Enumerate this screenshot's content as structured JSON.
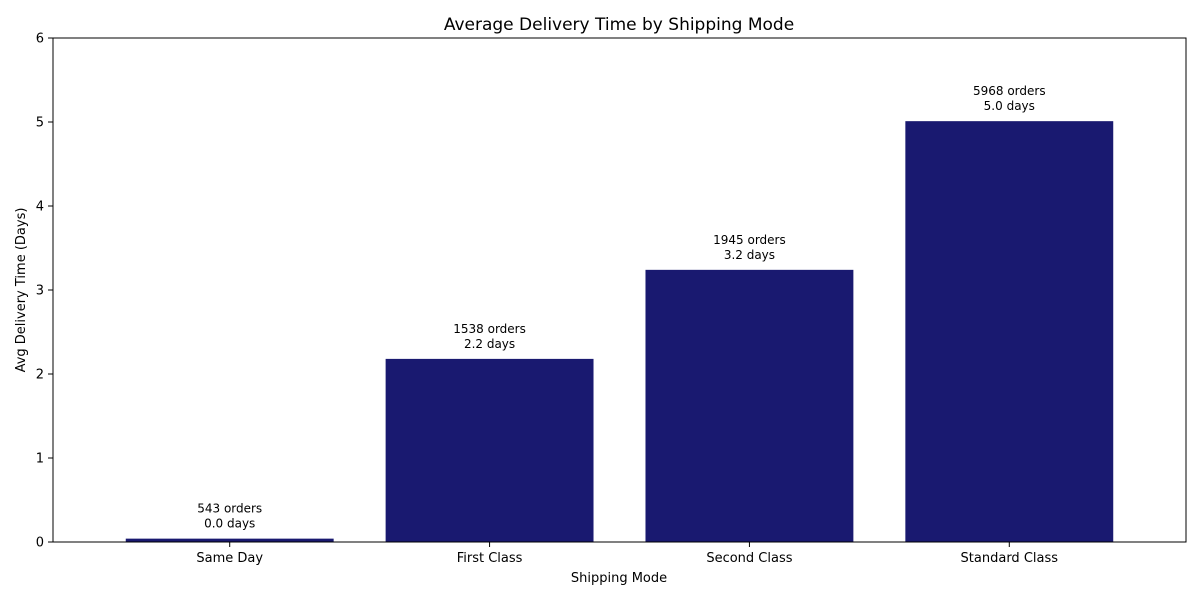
{
  "chart_data": {
    "type": "bar",
    "title": "Average Delivery Time by Shipping Mode",
    "xlabel": "Shipping Mode",
    "ylabel": "Avg Delivery Time (Days)",
    "categories": [
      "Same Day",
      "First Class",
      "Second Class",
      "Standard Class"
    ],
    "values": [
      0.04,
      2.18,
      3.24,
      5.01
    ],
    "orders": [
      "543 orders",
      "1538 orders",
      "1945 orders",
      "5968 orders"
    ],
    "value_labels": [
      "0.0 days",
      "2.2 days",
      "3.2 days",
      "5.0 days"
    ],
    "ylim": [
      0,
      6
    ],
    "yticks": [
      "0",
      "1",
      "2",
      "3",
      "4",
      "5",
      "6"
    ],
    "bar_color": "#191970",
    "grid": false
  }
}
